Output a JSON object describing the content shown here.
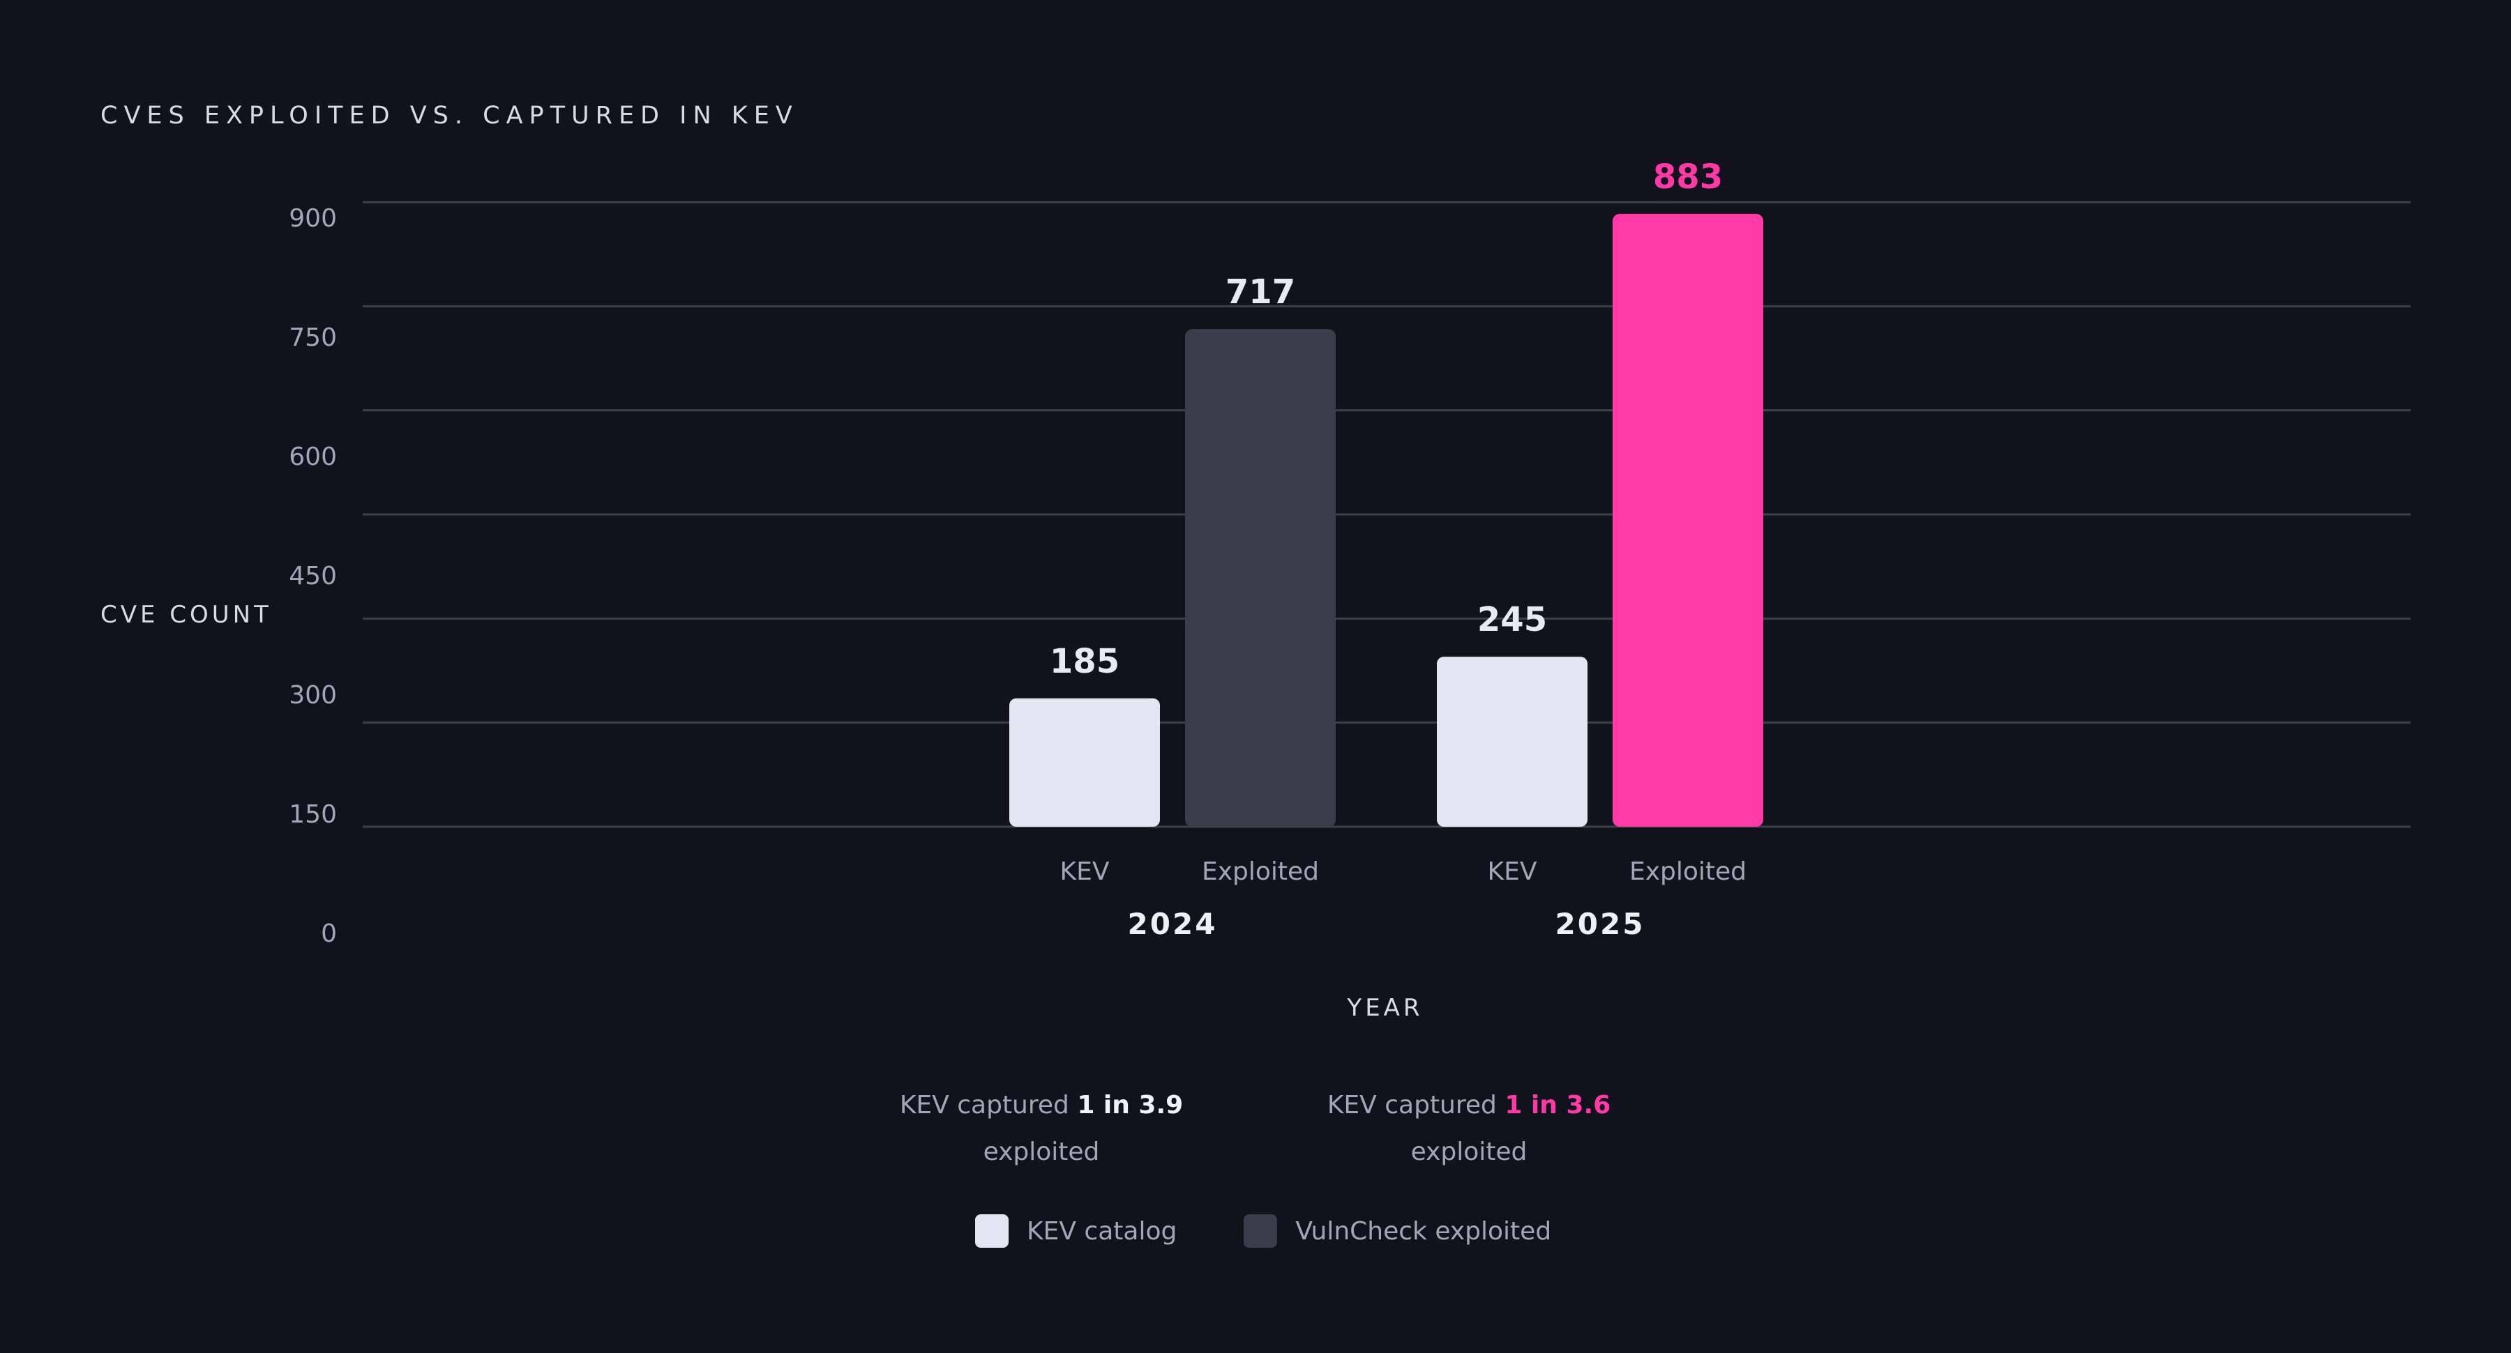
{
  "chart_data": {
    "type": "bar",
    "title": "CVES EXPLOITED VS. CAPTURED IN KEV",
    "xlabel": "YEAR",
    "ylabel": "CVE COUNT",
    "ylim": [
      0,
      900
    ],
    "yticks": [
      0,
      150,
      300,
      450,
      600,
      750,
      900
    ],
    "grid": true,
    "groups": [
      {
        "label": "2024",
        "bars": [
          {
            "category": "KEV",
            "value": 185,
            "series": "KEV catalog",
            "color": "#e1e6f0",
            "label_color": "#e8eaf2"
          },
          {
            "category": "Exploited",
            "value": 717,
            "series": "VulnCheck exploited",
            "color": "#3d3c4a",
            "label_color": "#e8eaf2"
          }
        ]
      },
      {
        "label": "2025",
        "bars": [
          {
            "category": "KEV",
            "value": 245,
            "series": "KEV catalog",
            "color": "#e1e6f0",
            "label_color": "#e8eaf2"
          },
          {
            "category": "Exploited",
            "value": 883,
            "series": "VulnCheck exploited",
            "color": "#ff3aa7",
            "label_color": "#ff3aa7"
          }
        ]
      }
    ],
    "legend": {
      "placement": "bottom-center",
      "items": [
        {
          "name": "KEV catalog",
          "color": "#e1e6f0"
        },
        {
          "name": "VulnCheck exploited",
          "color": "#3d3c4a"
        }
      ]
    }
  },
  "annotations": [
    {
      "prefix": "KEV captured ",
      "ratio": "1 in 3.9",
      "suffix": "exploited",
      "ratio_color": "#f2f3f8"
    },
    {
      "prefix": "KEV captured ",
      "ratio": "1 in 3.6",
      "suffix": "exploited",
      "ratio_color": "#ff3aa7"
    }
  ],
  "colors": {
    "background": "#12121c",
    "grid": "#3f3f4c",
    "tick_text": "#a3a6b5"
  }
}
